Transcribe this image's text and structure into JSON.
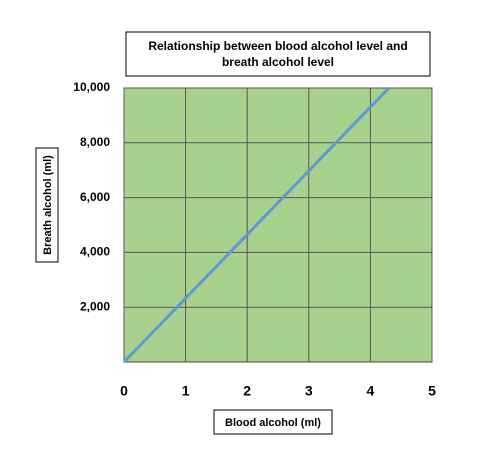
{
  "chart_data": {
    "type": "line",
    "title": "Relationship between blood alcohol level and breath alcohol level",
    "x_label": "Blood alcohol (ml)",
    "y_label": "Breath alcohol (ml)",
    "x": [
      0,
      4.3
    ],
    "values": [
      0,
      10000
    ],
    "color": "#5b9bd5",
    "background": "#a9d18e",
    "grid": true,
    "xlim": [
      0,
      5
    ],
    "xticks": [
      0,
      1,
      2,
      3,
      4,
      5
    ],
    "ylim": [
      0,
      10000
    ],
    "yticks": [
      {
        "value": 2000,
        "label": "2,000"
      },
      {
        "value": 4000,
        "label": "4,000"
      },
      {
        "value": 6000,
        "label": "6,000"
      },
      {
        "value": 8000,
        "label": "8,000"
      },
      {
        "value": 10000,
        "label": "10,000"
      }
    ]
  }
}
